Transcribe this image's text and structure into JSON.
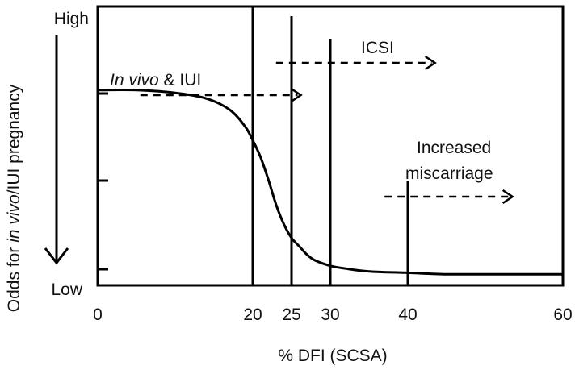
{
  "chart_data": {
    "type": "line",
    "xlabel": "% DFI (SCSA)",
    "ylabel_parts": [
      {
        "text": "Odds for ",
        "italic": false
      },
      {
        "text": "in vivo",
        "italic": true
      },
      {
        "text": "/IUI pregnancy",
        "italic": false
      }
    ],
    "y_high_label": "High",
    "y_low_label": "Low",
    "xlim": [
      0,
      60
    ],
    "x_ticks": [
      0,
      20,
      25,
      30,
      40,
      60
    ],
    "ylim": [
      0,
      1
    ],
    "series": [
      {
        "x": [
          0,
          5,
          10,
          14,
          17,
          19,
          20,
          21,
          22,
          23,
          24,
          25,
          26,
          27,
          28,
          30,
          32,
          35,
          40,
          45,
          50,
          55,
          60
        ],
        "y": [
          0.7,
          0.7,
          0.69,
          0.67,
          0.63,
          0.57,
          0.52,
          0.46,
          0.38,
          0.29,
          0.22,
          0.17,
          0.14,
          0.11,
          0.09,
          0.07,
          0.06,
          0.05,
          0.045,
          0.04,
          0.04,
          0.04,
          0.04
        ]
      }
    ],
    "thresholds": [
      {
        "x": 20
      },
      {
        "x": 25
      },
      {
        "x": 30
      },
      {
        "x": 40
      }
    ],
    "annotations": [
      {
        "parts": [
          {
            "text": "In vivo",
            "italic": true
          },
          {
            "text": " & IUI",
            "italic": false
          }
        ]
      },
      {
        "parts": [
          {
            "text": "ICSI",
            "italic": false
          }
        ]
      },
      {
        "parts": [
          {
            "text": "Increased",
            "italic": false
          }
        ]
      },
      {
        "parts": [
          {
            "text": "miscarriage",
            "italic": false
          }
        ]
      }
    ]
  }
}
